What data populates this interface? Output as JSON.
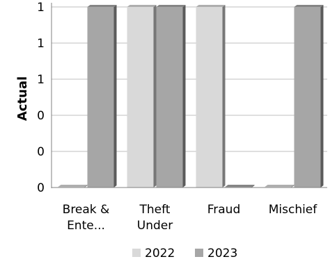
{
  "chart_data": {
    "type": "bar",
    "categories": [
      "Break & Ente...",
      "Theft Under",
      "Fraud",
      "Mischief"
    ],
    "series": [
      {
        "name": "2022",
        "values": [
          0,
          1,
          1,
          0
        ],
        "color": "#d9d9d9"
      },
      {
        "name": "2023",
        "values": [
          1,
          1,
          0,
          1
        ],
        "color": "#a6a6a6"
      }
    ],
    "xlabel": "",
    "ylabel": "Actual",
    "ylim": [
      0,
      1
    ],
    "yticks": [
      "0",
      "0",
      "0",
      "1",
      "1",
      "1"
    ],
    "grid": true,
    "legend_position": "bottom"
  }
}
